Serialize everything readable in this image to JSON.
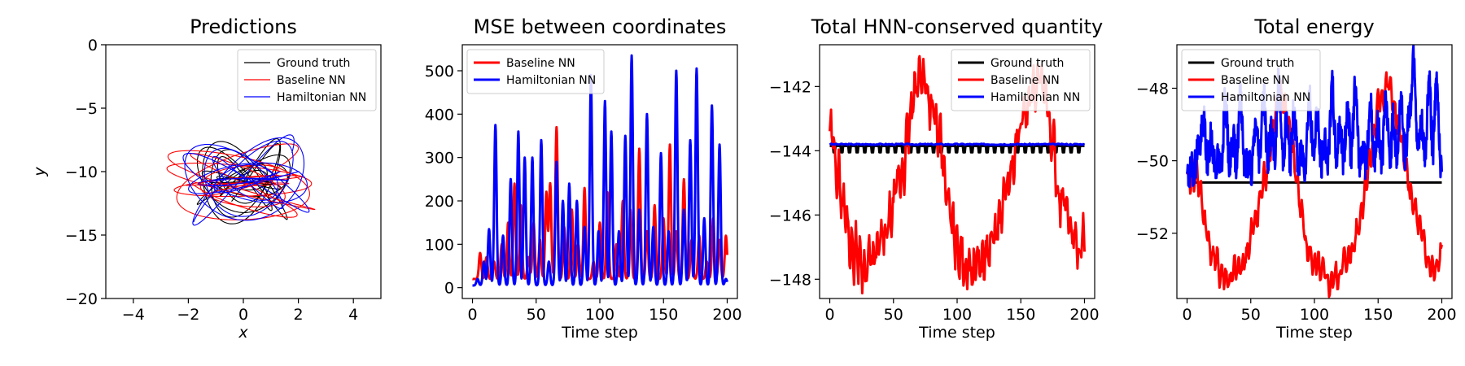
{
  "colors": {
    "ground_truth": "#000000",
    "baseline": "#ff0000",
    "hamiltonian": "#0000ff"
  },
  "chart_data": [
    {
      "type": "line",
      "title": "Predictions",
      "xlabel": "x",
      "ylabel": "y",
      "xlim": [
        -5,
        5
      ],
      "ylim": [
        -20,
        0
      ],
      "xticks": [
        -4,
        -2,
        0,
        2,
        4
      ],
      "yticks": [
        0,
        -5,
        -10,
        -15,
        -20
      ],
      "legend": {
        "position": "top-right",
        "entries": [
          "Ground truth",
          "Baseline NN",
          "Hamiltonian NN"
        ]
      },
      "series": [
        {
          "name": "Ground truth",
          "color": "#000000",
          "pattern": "trajectory",
          "center": [
            0.0,
            -10.8
          ],
          "amplitude": [
            1.7,
            3.4
          ],
          "freq": [
            1.0,
            1.37
          ],
          "phase": 0.0
        },
        {
          "name": "Baseline NN",
          "color": "#ff0000",
          "pattern": "trajectory",
          "center": [
            -0.1,
            -10.9
          ],
          "amplitude": [
            2.7,
            3.1
          ],
          "freq": [
            1.0,
            0.78
          ],
          "phase": 0.6
        },
        {
          "name": "Hamiltonian NN",
          "color": "#0000ff",
          "pattern": "trajectory",
          "center": [
            0.1,
            -10.7
          ],
          "amplitude": [
            2.3,
            3.6
          ],
          "freq": [
            1.0,
            1.27
          ],
          "phase": 1.3
        }
      ]
    },
    {
      "type": "line",
      "title": "MSE between coordinates",
      "xlabel": "Time step",
      "ylabel": "",
      "xlim": [
        -8,
        208
      ],
      "ylim": [
        -25,
        560
      ],
      "xticks": [
        0,
        50,
        100,
        150,
        200
      ],
      "yticks": [
        0,
        100,
        200,
        300,
        400,
        500
      ],
      "legend": {
        "position": "top-left",
        "entries": [
          "Baseline NN",
          "Hamiltonian NN"
        ]
      },
      "series": [
        {
          "name": "Baseline NN",
          "color": "#ff0000",
          "pattern": "spikes",
          "base": 20,
          "seed": 7,
          "peaks": [
            [
              6,
              80
            ],
            [
              11,
              70
            ],
            [
              17,
              60
            ],
            [
              23,
              100
            ],
            [
              28,
              150
            ],
            [
              33,
              240
            ],
            [
              38,
              190
            ],
            [
              44,
              70
            ],
            [
              48,
              150
            ],
            [
              53,
              110
            ],
            [
              58,
              220
            ],
            [
              61,
              240
            ],
            [
              66,
              370
            ],
            [
              72,
              140
            ],
            [
              78,
              180
            ],
            [
              83,
              100
            ],
            [
              88,
              230
            ],
            [
              95,
              60
            ],
            [
              100,
              150
            ],
            [
              106,
              220
            ],
            [
              113,
              100
            ],
            [
              118,
              200
            ],
            [
              124,
              180
            ],
            [
              131,
              320
            ],
            [
              137,
              130
            ],
            [
              143,
              190
            ],
            [
              150,
              160
            ],
            [
              155,
              330
            ],
            [
              160,
              130
            ],
            [
              166,
              250
            ],
            [
              172,
              110
            ],
            [
              178,
              120
            ],
            [
              184,
              60
            ],
            [
              189,
              160
            ],
            [
              194,
              110
            ],
            [
              199,
              120
            ]
          ]
        },
        {
          "name": "Hamiltonian NN",
          "color": "#0000ff",
          "pattern": "spikes",
          "base": 5,
          "seed": 13,
          "peaks": [
            [
              4,
              20
            ],
            [
              9,
              60
            ],
            [
              13,
              135
            ],
            [
              18,
              375
            ],
            [
              24,
              120
            ],
            [
              30,
              250
            ],
            [
              36,
              360
            ],
            [
              41,
              300
            ],
            [
              47,
              300
            ],
            [
              54,
              340
            ],
            [
              60,
              60
            ],
            [
              66,
              290
            ],
            [
              71,
              200
            ],
            [
              76,
              240
            ],
            [
              82,
              200
            ],
            [
              88,
              140
            ],
            [
              93,
              490
            ],
            [
              99,
              130
            ],
            [
              104,
              430
            ],
            [
              109,
              360
            ],
            [
              115,
              130
            ],
            [
              120,
              350
            ],
            [
              125,
              535
            ],
            [
              131,
              180
            ],
            [
              137,
              400
            ],
            [
              142,
              140
            ],
            [
              148,
              310
            ],
            [
              154,
              130
            ],
            [
              160,
              500
            ],
            [
              166,
              180
            ],
            [
              171,
              340
            ],
            [
              176,
              505
            ],
            [
              182,
              160
            ],
            [
              188,
              420
            ],
            [
              194,
              330
            ],
            [
              199,
              20
            ]
          ]
        }
      ]
    },
    {
      "type": "line",
      "title": "Total HNN-conserved quantity",
      "xlabel": "Time step",
      "ylabel": "",
      "xlim": [
        -8,
        208
      ],
      "ylim": [
        -148.6,
        -140.7
      ],
      "xticks": [
        0,
        50,
        100,
        150,
        200
      ],
      "yticks": [
        -142,
        -144,
        -146,
        -148
      ],
      "legend": {
        "position": "top-right",
        "entries": [
          "Ground truth",
          "Baseline NN",
          "Hamiltonian NN"
        ]
      },
      "series": [
        {
          "name": "Ground truth",
          "color": "#000000",
          "pattern": "teeth",
          "level": -143.85,
          "depth": 0.2,
          "period": 6
        },
        {
          "name": "Baseline NN",
          "color": "#ff0000",
          "pattern": "wave",
          "seed": 29,
          "noise": 0.9,
          "ripple": 0.5,
          "anchors": [
            [
              0,
              -143.8
            ],
            [
              3,
              -143.9
            ],
            [
              8,
              -145.0
            ],
            [
              16,
              -146.8
            ],
            [
              26,
              -147.5
            ],
            [
              36,
              -147.4
            ],
            [
              46,
              -146.5
            ],
            [
              56,
              -144.8
            ],
            [
              66,
              -142.5
            ],
            [
              72,
              -141.4
            ],
            [
              80,
              -142.6
            ],
            [
              88,
              -144.3
            ],
            [
              96,
              -146.5
            ],
            [
              106,
              -147.4
            ],
            [
              116,
              -147.6
            ],
            [
              126,
              -147.1
            ],
            [
              136,
              -145.8
            ],
            [
              146,
              -144.0
            ],
            [
              156,
              -142.3
            ],
            [
              164,
              -141.6
            ],
            [
              172,
              -143.2
            ],
            [
              180,
              -145.2
            ],
            [
              190,
              -146.3
            ],
            [
              196,
              -147.2
            ],
            [
              200,
              -146.7
            ]
          ]
        },
        {
          "name": "Hamiltonian NN",
          "color": "#0000ff",
          "pattern": "flat",
          "seed": 3,
          "level": -143.8,
          "noise": 0.04
        }
      ]
    },
    {
      "type": "line",
      "title": "Total energy",
      "xlabel": "Time step",
      "ylabel": "",
      "xlim": [
        -8,
        208
      ],
      "ylim": [
        -53.8,
        -46.8
      ],
      "xticks": [
        0,
        50,
        100,
        150,
        200
      ],
      "yticks": [
        -48,
        -50,
        -52
      ],
      "legend": {
        "position": "top-left",
        "entries": [
          "Ground truth",
          "Baseline NN",
          "Hamiltonian NN"
        ]
      },
      "series": [
        {
          "name": "Ground truth",
          "color": "#000000",
          "pattern": "flatline",
          "level": -50.6
        },
        {
          "name": "Baseline NN",
          "color": "#ff0000",
          "pattern": "wave",
          "seed": 41,
          "noise": 0.45,
          "ripple": 0.3,
          "anchors": [
            [
              0,
              -50.6
            ],
            [
              4,
              -50.4
            ],
            [
              8,
              -50.3
            ],
            [
              12,
              -51.3
            ],
            [
              18,
              -52.4
            ],
            [
              26,
              -53.1
            ],
            [
              34,
              -53.3
            ],
            [
              42,
              -53.0
            ],
            [
              50,
              -52.2
            ],
            [
              56,
              -51.3
            ],
            [
              62,
              -50.3
            ],
            [
              68,
              -49.0
            ],
            [
              72,
              -48.3
            ],
            [
              78,
              -48.6
            ],
            [
              84,
              -50.0
            ],
            [
              90,
              -51.5
            ],
            [
              96,
              -52.6
            ],
            [
              104,
              -53.2
            ],
            [
              112,
              -53.4
            ],
            [
              120,
              -53.1
            ],
            [
              128,
              -52.6
            ],
            [
              136,
              -51.5
            ],
            [
              142,
              -50.2
            ],
            [
              148,
              -49.0
            ],
            [
              152,
              -48.2
            ],
            [
              158,
              -47.9
            ],
            [
              164,
              -48.8
            ],
            [
              170,
              -49.9
            ],
            [
              176,
              -51.0
            ],
            [
              184,
              -52.2
            ],
            [
              190,
              -52.9
            ],
            [
              196,
              -53.2
            ],
            [
              200,
              -52.5
            ]
          ]
        },
        {
          "name": "Hamiltonian NN",
          "color": "#0000ff",
          "pattern": "spikes",
          "base": -50.45,
          "seed": 19,
          "width": 2.2,
          "peaks": [
            [
              5,
              -50.2
            ],
            [
              9,
              -49.6
            ],
            [
              13,
              -48.9
            ],
            [
              19,
              -49.4
            ],
            [
              24,
              -50.0
            ],
            [
              30,
              -48.4
            ],
            [
              36,
              -49.4
            ],
            [
              42,
              -48.2
            ],
            [
              48,
              -50.0
            ],
            [
              54,
              -49.0
            ],
            [
              60,
              -48.0
            ],
            [
              66,
              -49.2
            ],
            [
              72,
              -47.8
            ],
            [
              78,
              -49.0
            ],
            [
              84,
              -48.6
            ],
            [
              90,
              -49.8
            ],
            [
              96,
              -48.2
            ],
            [
              102,
              -48.7
            ],
            [
              108,
              -49.4
            ],
            [
              114,
              -48.0
            ],
            [
              120,
              -49.0
            ],
            [
              126,
              -48.5
            ],
            [
              132,
              -48.0
            ],
            [
              138,
              -49.6
            ],
            [
              144,
              -48.4
            ],
            [
              150,
              -49.1
            ],
            [
              156,
              -48.3
            ],
            [
              162,
              -48.9
            ],
            [
              168,
              -48.2
            ],
            [
              174,
              -48.8
            ],
            [
              178,
              -47.0
            ],
            [
              184,
              -49.0
            ],
            [
              190,
              -47.8
            ],
            [
              196,
              -47.8
            ],
            [
              200,
              -50.4
            ]
          ]
        }
      ]
    }
  ]
}
